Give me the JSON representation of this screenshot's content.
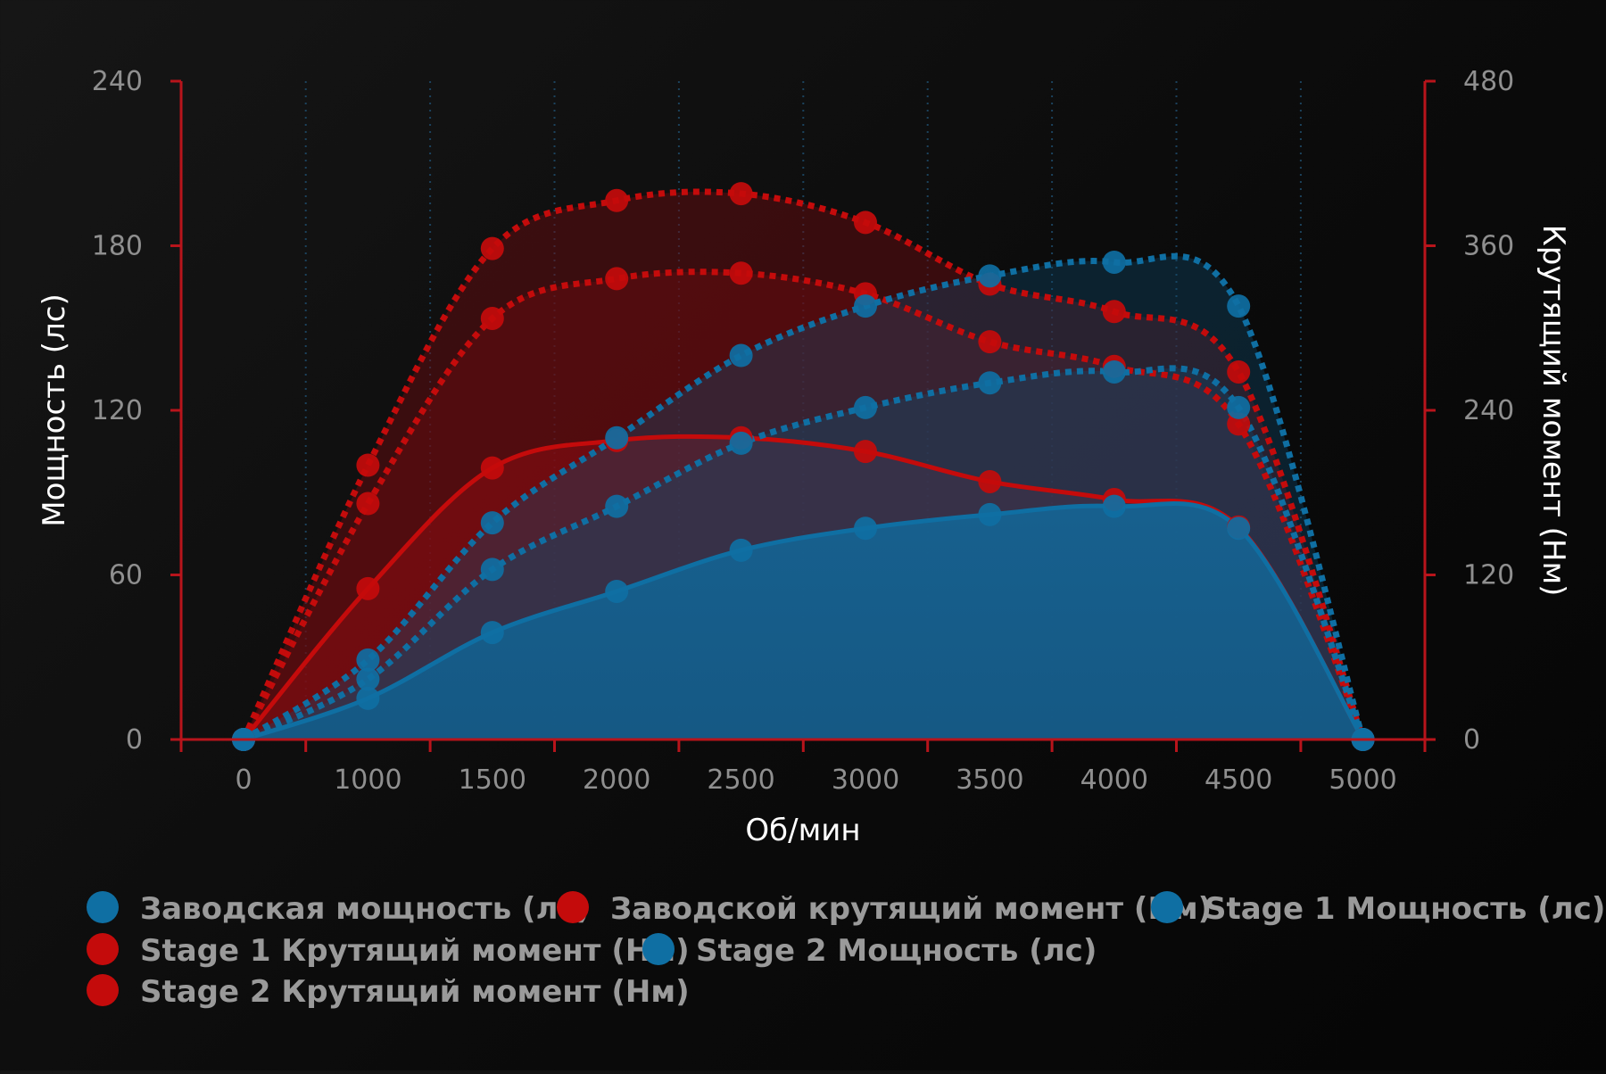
{
  "chart_data": {
    "type": "line",
    "x_axis": {
      "label": "Об/мин",
      "ticks": [
        0,
        1000,
        1500,
        2000,
        2500,
        3000,
        3500,
        4000,
        4500,
        5000
      ]
    },
    "y_axis_left": {
      "label": "Мощность (лс)",
      "range": [
        0,
        240
      ],
      "ticks": [
        0,
        60,
        120,
        180,
        240
      ]
    },
    "y_axis_right": {
      "label": "Крутящий момент (Нм)",
      "range": [
        0,
        480
      ],
      "ticks": [
        0,
        120,
        240,
        360,
        480
      ]
    },
    "grid": "vertical dotted",
    "legend_position": "bottom",
    "series": [
      {
        "name": "Заводская мощность (лс)",
        "axis": "left",
        "kind": "power",
        "style": "solid",
        "color": "#0f6fa3",
        "values": [
          0,
          15,
          39,
          54,
          69,
          77,
          82,
          85,
          77,
          0
        ]
      },
      {
        "name": "Заводской крутящий момент (Нм)",
        "axis": "right",
        "kind": "torque",
        "style": "solid",
        "color": "#c40b0b",
        "values": [
          0,
          110,
          198,
          218,
          220,
          210,
          188,
          175,
          155,
          0
        ]
      },
      {
        "name": "Stage 1 Мощность (лс)",
        "axis": "left",
        "kind": "power",
        "style": "dotted",
        "color": "#0f6fa3",
        "values": [
          0,
          22,
          62,
          85,
          108,
          121,
          130,
          134,
          121,
          0
        ]
      },
      {
        "name": "Stage 1 Крутящий момент (Нм)",
        "axis": "right",
        "kind": "torque",
        "style": "dotted",
        "color": "#c40b0b",
        "values": [
          0,
          172,
          307,
          336,
          340,
          325,
          290,
          272,
          230,
          0
        ]
      },
      {
        "name": "Stage 2 Мощность (лс)",
        "axis": "left",
        "kind": "power",
        "style": "dotted",
        "color": "#0f6fa3",
        "values": [
          0,
          29,
          79,
          110,
          140,
          158,
          169,
          174,
          158,
          0
        ]
      },
      {
        "name": "Stage 2 Крутящий момент (Нм)",
        "axis": "right",
        "kind": "torque",
        "style": "dotted",
        "color": "#c40b0b",
        "values": [
          0,
          200,
          358,
          393,
          398,
          377,
          332,
          312,
          268,
          0
        ]
      }
    ]
  }
}
